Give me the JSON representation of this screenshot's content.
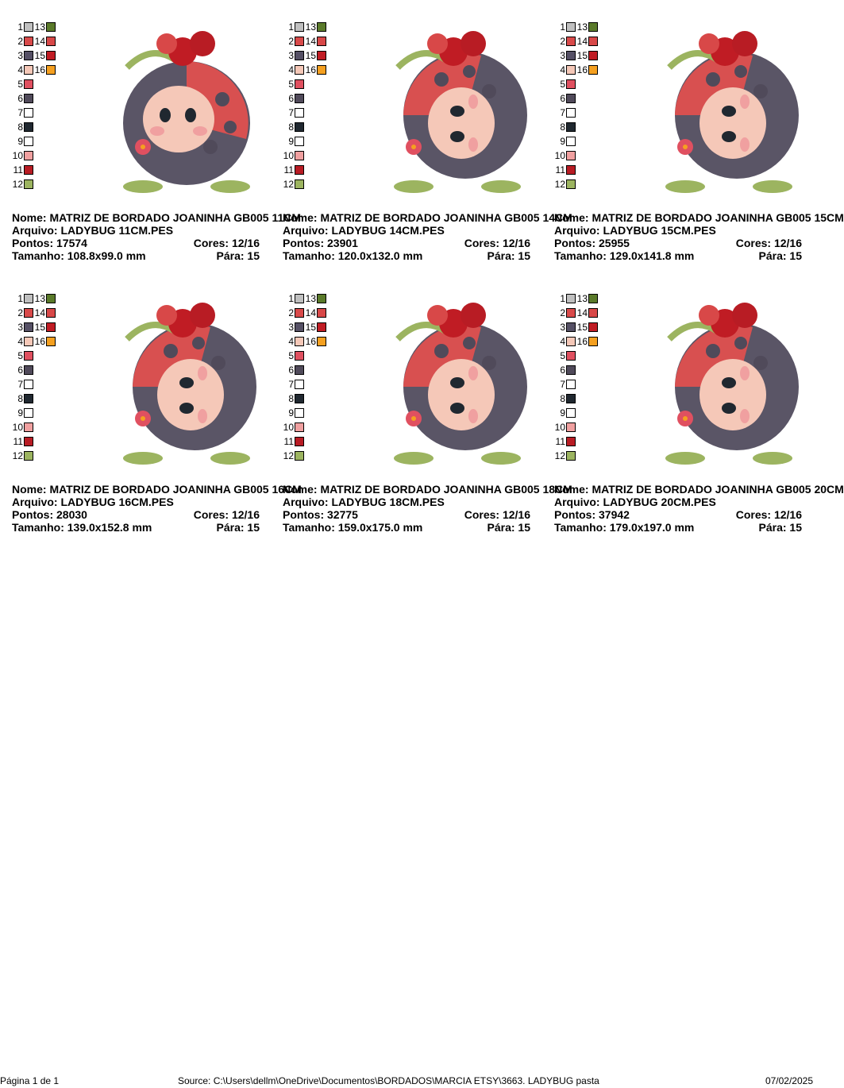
{
  "palette": [
    {
      "n": "1",
      "color": "#c0c0c0"
    },
    {
      "n": "2",
      "color": "#d94a4a"
    },
    {
      "n": "3",
      "color": "#555065"
    },
    {
      "n": "4",
      "color": "#f5c8b8"
    },
    {
      "n": "5",
      "color": "#e05060"
    },
    {
      "n": "6",
      "color": "#504a5a"
    },
    {
      "n": "7",
      "color": "#ffffff"
    },
    {
      "n": "8",
      "color": "#202830"
    },
    {
      "n": "9",
      "color": "#ffffff"
    },
    {
      "n": "10",
      "color": "#f0a0a0"
    },
    {
      "n": "11",
      "color": "#b81c24"
    },
    {
      "n": "12",
      "color": "#9cb460"
    },
    {
      "n": "13",
      "color": "#5a7a2a"
    },
    {
      "n": "14",
      "color": "#d84848"
    },
    {
      "n": "15",
      "color": "#c01c24"
    },
    {
      "n": "16",
      "color": "#f5a020"
    }
  ],
  "designs": [
    {
      "nome": "Nome: MATRIZ DE BORDADO JOANINHA GB005 11CM",
      "arquivo": "Arquivo: LADYBUG 11CM.PES",
      "pontos": "Pontos: 17574",
      "cores": "Cores: 12/16",
      "tamanho": "Tamanho: 108.8x99.0 mm",
      "para": "Pára: 15"
    },
    {
      "nome": "Nome: MATRIZ DE BORDADO JOANINHA GB005 14CM",
      "arquivo": "Arquivo: LADYBUG 14CM.PES",
      "pontos": "Pontos: 23901",
      "cores": "Cores: 12/16",
      "tamanho": "Tamanho: 120.0x132.0 mm",
      "para": "Pára: 15"
    },
    {
      "nome": "Nome: MATRIZ DE BORDADO JOANINHA GB005 15CM",
      "arquivo": "Arquivo: LADYBUG 15CM.PES",
      "pontos": "Pontos: 25955",
      "cores": "Cores: 12/16",
      "tamanho": "Tamanho: 129.0x141.8 mm",
      "para": "Pára: 15"
    },
    {
      "nome": "Nome: MATRIZ DE BORDADO JOANINHA GB005 16CM",
      "arquivo": "Arquivo: LADYBUG 16CM.PES",
      "pontos": "Pontos: 28030",
      "cores": "Cores: 12/16",
      "tamanho": "Tamanho: 139.0x152.8 mm",
      "para": "Pára: 15"
    },
    {
      "nome": "Nome: MATRIZ DE BORDADO JOANINHA GB005 18CM",
      "arquivo": "Arquivo: LADYBUG 18CM.PES",
      "pontos": "Pontos: 32775",
      "cores": "Cores: 12/16",
      "tamanho": "Tamanho: 159.0x175.0 mm",
      "para": "Pára: 15"
    },
    {
      "nome": "Nome: MATRIZ DE BORDADO JOANINHA GB005 20CM",
      "arquivo": "Arquivo: LADYBUG 20CM.PES",
      "pontos": "Pontos: 37942",
      "cores": "Cores: 12/16",
      "tamanho": "Tamanho: 179.0x197.0 mm",
      "para": "Pára: 15"
    }
  ],
  "footer": {
    "page": "Página 1 de 1",
    "source": "Source: C:\\Users\\dellm\\OneDrive\\Documentos\\BORDADOS\\MARCIA ETSY\\3663. LADYBUG pasta",
    "date": "07/02/2025"
  }
}
